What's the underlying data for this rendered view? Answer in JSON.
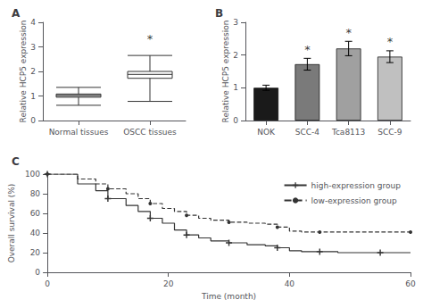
{
  "chart_data": [
    {
      "type": "box",
      "title": "A",
      "ylabel": "Relative HCP5 expression",
      "categories": [
        "Normal tissues",
        "OSCC tissues"
      ],
      "boxes": [
        {
          "median": 1.02,
          "q1": 0.95,
          "q3": 1.08,
          "whislo": 0.62,
          "whishi": 1.35
        },
        {
          "median": 1.88,
          "q1": 1.72,
          "q3": 2.0,
          "whislo": 0.78,
          "whishi": 2.65
        }
      ],
      "colors": [
        "#c8c8c8",
        "#ffffff"
      ],
      "ylim": [
        0,
        4
      ],
      "yticks": [
        0,
        1,
        2,
        3,
        4
      ],
      "annotations": [
        {
          "text": "*",
          "x": "OSCC tissues",
          "y": 3.1
        }
      ],
      "grid": false
    },
    {
      "type": "bar",
      "title": "B",
      "ylabel": "Relative HCP5 expression",
      "categories": [
        "NOK",
        "SCC-4",
        "Tca8113",
        "SCC-9"
      ],
      "values": [
        1.0,
        1.72,
        2.2,
        1.95
      ],
      "errors": [
        0.08,
        0.18,
        0.22,
        0.18
      ],
      "colors": [
        "#1a1a1a",
        "#7a7a7a",
        "#a0a0a0",
        "#c0c0c0"
      ],
      "ylim": [
        0,
        3
      ],
      "yticks": [
        0,
        1,
        2,
        3
      ],
      "annotations": [
        {
          "text": "*",
          "x": "SCC-4",
          "y": 2.0
        },
        {
          "text": "*",
          "x": "Tca8113",
          "y": 2.52
        },
        {
          "text": "*",
          "x": "SCC-9",
          "y": 2.23
        }
      ],
      "grid": false
    },
    {
      "type": "line",
      "title": "C",
      "xlabel": "Time (month)",
      "ylabel": "Overall survival (%)",
      "xlim": [
        0,
        60
      ],
      "ylim": [
        0,
        100
      ],
      "xticks": [
        0,
        20,
        40,
        60
      ],
      "yticks": [
        0,
        20,
        40,
        60,
        80,
        100
      ],
      "series": [
        {
          "name": "high-expression group",
          "color": "#333333",
          "line_style": "solid",
          "marker": "plus",
          "x": [
            0,
            5,
            8,
            10,
            13,
            15,
            17,
            19,
            21,
            23,
            25,
            27,
            30,
            33,
            36,
            38,
            40,
            42,
            45,
            48,
            50,
            55,
            60
          ],
          "values": [
            100,
            90,
            83,
            75,
            68,
            62,
            55,
            50,
            43,
            38,
            35,
            32,
            30,
            28,
            27,
            25,
            22,
            21,
            21,
            20,
            20,
            20,
            20
          ]
        },
        {
          "name": "low-expression group",
          "color": "#333333",
          "line_style": "dashed",
          "marker": "dot",
          "x": [
            0,
            5,
            8,
            10,
            13,
            15,
            17,
            19,
            21,
            23,
            25,
            27,
            30,
            33,
            36,
            38,
            40,
            42,
            45,
            50,
            55,
            60
          ],
          "values": [
            100,
            95,
            90,
            85,
            80,
            75,
            70,
            65,
            62,
            58,
            55,
            53,
            51,
            50,
            49,
            46,
            42,
            41,
            41,
            41,
            41,
            41
          ]
        }
      ],
      "legend": "upper right",
      "grid": false
    }
  ]
}
